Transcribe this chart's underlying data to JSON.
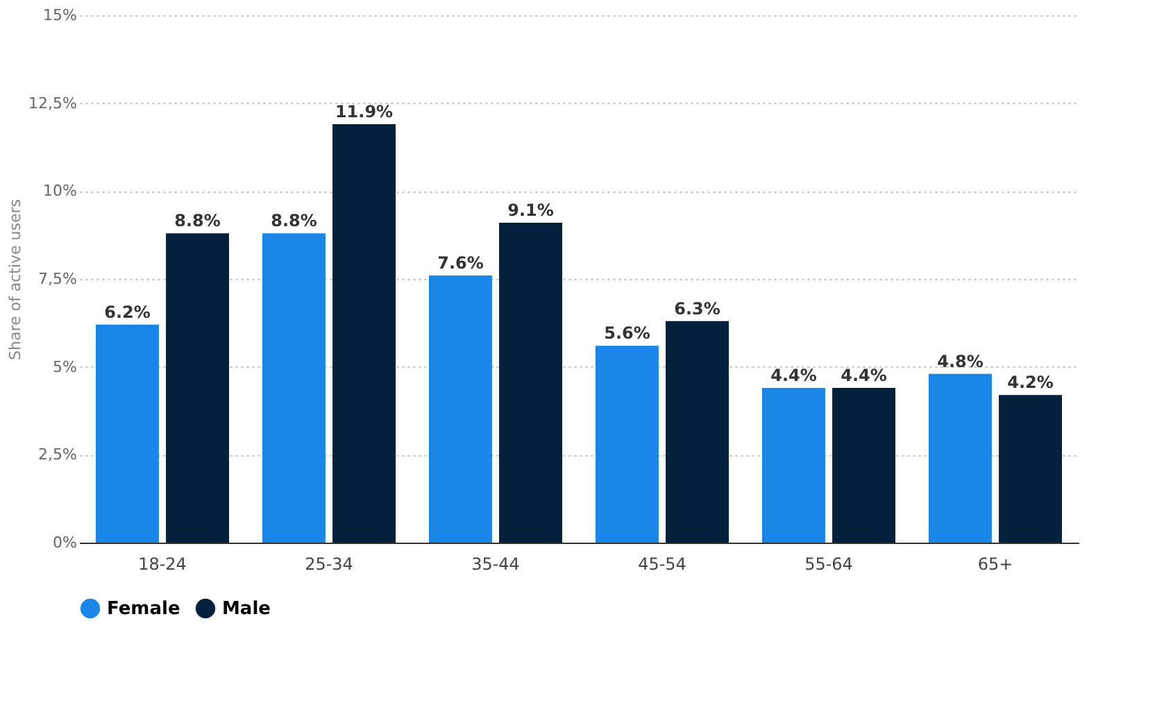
{
  "chart_data": {
    "type": "bar",
    "ylabel": "Share of active users",
    "categories": [
      "18-24",
      "25-34",
      "35-44",
      "45-54",
      "55-64",
      "65+"
    ],
    "series": [
      {
        "name": "Female",
        "color": "#1a86e8",
        "values": [
          6.2,
          8.8,
          7.6,
          5.6,
          4.4,
          4.8
        ],
        "value_labels": [
          "6.2%",
          "8.8%",
          "7.6%",
          "5.6%",
          "4.4%",
          "4.8%"
        ]
      },
      {
        "name": "Male",
        "color": "#04203c",
        "values": [
          8.8,
          11.9,
          9.1,
          6.3,
          4.4,
          4.2
        ],
        "value_labels": [
          "8.8%",
          "11.9%",
          "9.1%",
          "6.3%",
          "4.4%",
          "4.2%"
        ]
      }
    ],
    "ylim": [
      0,
      15
    ],
    "yticks": [
      {
        "value": 0,
        "label": "0%"
      },
      {
        "value": 2.5,
        "label": "2,5%"
      },
      {
        "value": 5,
        "label": "5%"
      },
      {
        "value": 7.5,
        "label": "7,5%"
      },
      {
        "value": 10,
        "label": "10%"
      },
      {
        "value": 12.5,
        "label": "12,5%"
      },
      {
        "value": 15,
        "label": "15%"
      }
    ],
    "grid": "y",
    "legend": "bottom"
  }
}
